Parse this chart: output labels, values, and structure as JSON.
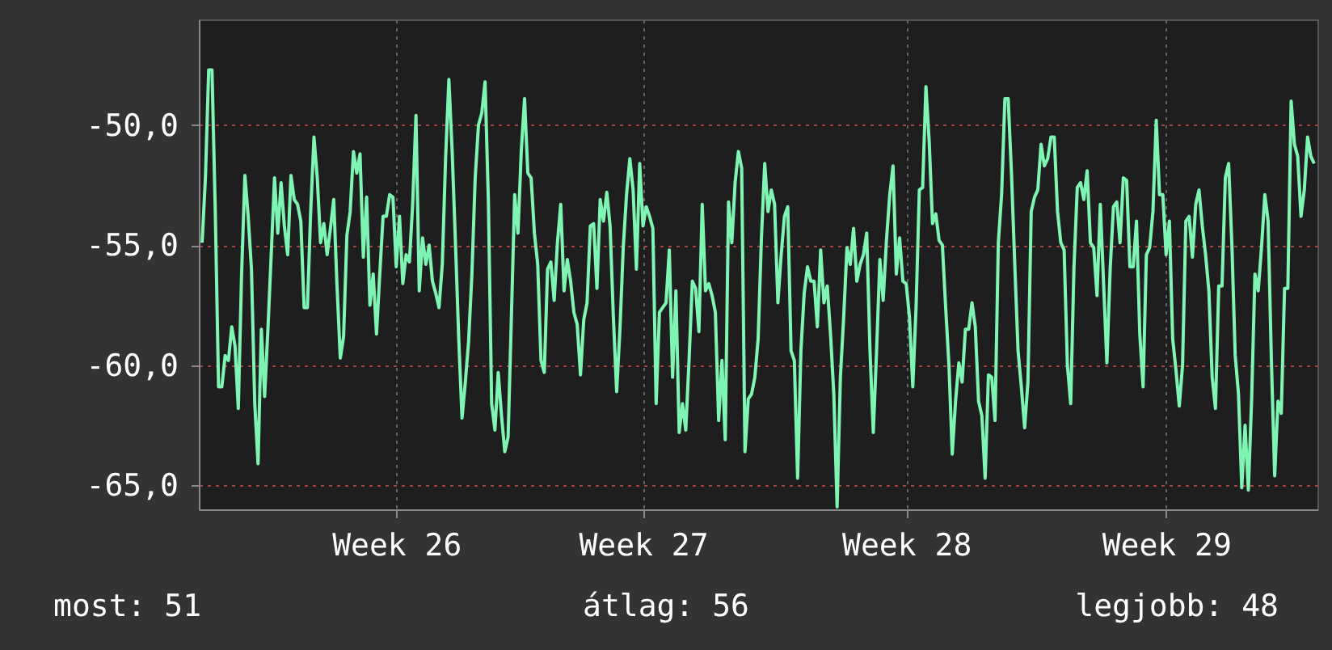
{
  "chart_data": {
    "type": "line",
    "categories": [
      null,
      null,
      null,
      null,
      null,
      null,
      null,
      null,
      null,
      null,
      null,
      null,
      null,
      null,
      null,
      null,
      null,
      null,
      null,
      null,
      null,
      null,
      null,
      null,
      null,
      null,
      null,
      null,
      null,
      null,
      null,
      null,
      null,
      null,
      null,
      null,
      null,
      null,
      null,
      null,
      null,
      null,
      null,
      null,
      null,
      null,
      null,
      null,
      null,
      null,
      null,
      null,
      null,
      null,
      null,
      null,
      null,
      null,
      null,
      "Week 26",
      null,
      null,
      null,
      null,
      null,
      null,
      null,
      null,
      null,
      null,
      null,
      null,
      null,
      null,
      null,
      null,
      null,
      null,
      null,
      null,
      null,
      null,
      null,
      null,
      null,
      null,
      null,
      null,
      null,
      null,
      null,
      null,
      null,
      null,
      null,
      null,
      null,
      null,
      null,
      null,
      null,
      null,
      null,
      null,
      null,
      null,
      null,
      null,
      null,
      null,
      null,
      null,
      null,
      null,
      null,
      null,
      null,
      null,
      null,
      null,
      null,
      null,
      null,
      null,
      null,
      null,
      null,
      null,
      null,
      null,
      null,
      null,
      null,
      null,
      "Week 27",
      null,
      null,
      null,
      null,
      null,
      null,
      null,
      null,
      null,
      null,
      null,
      null,
      null,
      null,
      null,
      null,
      null,
      null,
      null,
      null,
      null,
      null,
      null,
      null,
      null,
      null,
      null,
      null,
      null,
      null,
      null,
      null,
      null,
      null,
      null,
      null,
      null,
      null,
      null,
      null,
      null,
      null,
      null,
      null,
      null,
      null,
      null,
      null,
      null,
      null,
      null,
      null,
      null,
      null,
      null,
      null,
      null,
      null,
      null,
      null,
      null,
      null,
      null,
      null,
      null,
      null,
      null,
      null,
      null,
      null,
      null,
      null,
      null,
      null,
      null,
      null,
      null,
      null,
      null,
      "Week 28",
      null,
      null,
      null,
      null,
      null,
      null,
      null,
      null,
      null,
      null,
      null,
      null,
      null,
      null,
      null,
      null,
      null,
      null,
      null,
      null,
      null,
      null,
      null,
      null,
      null,
      null,
      null,
      null,
      null,
      null,
      null,
      null,
      null,
      null,
      null,
      null,
      null,
      null,
      null,
      null,
      null,
      null,
      null,
      null,
      null,
      null,
      null,
      null,
      null,
      null,
      null,
      null,
      null,
      null,
      null,
      null,
      null,
      null,
      null,
      null,
      null,
      null,
      null,
      null,
      null,
      null,
      null,
      null,
      null,
      null,
      null,
      null,
      null,
      null,
      null,
      null,
      null,
      null,
      "Week 29",
      null,
      null,
      null,
      null,
      null,
      null,
      null,
      null,
      null,
      null,
      null,
      null,
      null,
      null,
      null,
      null,
      null,
      null,
      null,
      null,
      null,
      null,
      null,
      null,
      null,
      null,
      null,
      null,
      null,
      null,
      null,
      null,
      null,
      null,
      null,
      null,
      null,
      null,
      null,
      null,
      null,
      null,
      null,
      null,
      null
    ],
    "series": [
      {
        "color": "#7ff5b4",
        "values": [
          -54.9,
          -52.2,
          -47.7,
          -47.7,
          -53.6,
          -60.9,
          -60.9,
          -59.6,
          -59.8,
          -58.4,
          -59.2,
          -61.8,
          -56.2,
          -52.1,
          -53.8,
          -56.0,
          -61.6,
          -64.1,
          -58.5,
          -61.3,
          -58.5,
          -55.4,
          -52.2,
          -54.5,
          -52.4,
          -54.2,
          -55.4,
          -52.1,
          -53.1,
          -53.3,
          -54.0,
          -57.6,
          -57.6,
          -53.6,
          -50.5,
          -52.2,
          -54.9,
          -54.1,
          -55.4,
          -54.3,
          -53.1,
          -56.7,
          -59.7,
          -58.8,
          -54.6,
          -53.6,
          -51.1,
          -52.0,
          -51.2,
          -55.5,
          -53.0,
          -57.5,
          -56.2,
          -58.7,
          -56.2,
          -53.8,
          -53.8,
          -52.9,
          -53.0,
          -55.9,
          -53.8,
          -56.6,
          -55.4,
          -55.7,
          -53.3,
          -49.6,
          -56.9,
          -54.7,
          -55.8,
          -55.0,
          -56.5,
          -57.0,
          -57.6,
          -55.8,
          -51.4,
          -48.1,
          -51.1,
          -54.9,
          -58.9,
          -62.2,
          -60.7,
          -59.0,
          -56.2,
          -52.2,
          -50.0,
          -49.5,
          -48.2,
          -53.1,
          -61.6,
          -62.7,
          -60.3,
          -62.1,
          -63.6,
          -63.0,
          -58.0,
          -52.9,
          -54.5,
          -51.1,
          -48.9,
          -52.0,
          -52.2,
          -54.5,
          -55.8,
          -59.8,
          -60.3,
          -56.0,
          -55.7,
          -57.3,
          -54.9,
          -53.3,
          -56.9,
          -55.6,
          -56.5,
          -57.8,
          -58.3,
          -60.4,
          -58.1,
          -57.4,
          -54.2,
          -54.1,
          -56.8,
          -53.1,
          -54.0,
          -52.8,
          -54.2,
          -58.0,
          -61.1,
          -58.5,
          -55.1,
          -52.9,
          -51.4,
          -52.7,
          -56.0,
          -51.6,
          -54.2,
          -53.4,
          -53.8,
          -54.3,
          -61.6,
          -57.8,
          -57.6,
          -57.4,
          -55.2,
          -60.5,
          -56.9,
          -62.8,
          -61.6,
          -62.7,
          -59.8,
          -56.5,
          -56.8,
          -58.6,
          -53.3,
          -56.9,
          -56.6,
          -57.1,
          -57.8,
          -62.3,
          -59.8,
          -63.1,
          -53.2,
          -54.9,
          -52.4,
          -51.1,
          -51.8,
          -63.6,
          -61.4,
          -61.2,
          -60.5,
          -58.9,
          -54.7,
          -51.6,
          -53.6,
          -52.7,
          -53.3,
          -57.4,
          -55.4,
          -53.8,
          -53.4,
          -59.4,
          -59.8,
          -64.7,
          -59.4,
          -57.0,
          -55.9,
          -56.5,
          -56.5,
          -58.4,
          -55.2,
          -57.4,
          -56.7,
          -58.7,
          -61.2,
          -65.9,
          -60.5,
          -58.0,
          -55.1,
          -55.8,
          -54.3,
          -56.5,
          -55.8,
          -55.4,
          -54.5,
          -59.4,
          -62.8,
          -59.4,
          -55.6,
          -57.3,
          -54.8,
          -52.9,
          -51.7,
          -56.2,
          -54.7,
          -56.5,
          -56.6,
          -58.0,
          -60.9,
          -57.6,
          -52.7,
          -52.6,
          -48.4,
          -50.7,
          -54.1,
          -53.7,
          -54.8,
          -55.0,
          -57.6,
          -60.0,
          -63.7,
          -61.5,
          -59.9,
          -60.7,
          -58.5,
          -58.5,
          -57.4,
          -58.4,
          -61.5,
          -62.1,
          -64.7,
          -60.4,
          -60.5,
          -62.3,
          -54.9,
          -52.9,
          -48.9,
          -48.9,
          -52.0,
          -55.8,
          -59.4,
          -60.9,
          -62.6,
          -60.7,
          -53.6,
          -53.0,
          -52.7,
          -50.8,
          -51.7,
          -51.4,
          -50.5,
          -50.5,
          -53.6,
          -54.9,
          -55.2,
          -60.0,
          -61.6,
          -55.9,
          -52.6,
          -52.4,
          -53.1,
          -51.9,
          -54.9,
          -55.1,
          -57.1,
          -53.3,
          -56.6,
          -59.9,
          -56.0,
          -53.4,
          -53.2,
          -54.9,
          -52.2,
          -52.3,
          -55.9,
          -55.9,
          -54.0,
          -58.7,
          -60.9,
          -55.4,
          -55.1,
          -53.6,
          -49.8,
          -52.9,
          -52.9,
          -55.4,
          -54.0,
          -58.9,
          -60.2,
          -61.7,
          -60.0,
          -54.0,
          -53.8,
          -55.5,
          -53.3,
          -52.7,
          -54.2,
          -55.4,
          -56.9,
          -60.5,
          -61.8,
          -56.7,
          -56.7,
          -52.2,
          -51.6,
          -55.0,
          -59.6,
          -61.2,
          -65.1,
          -62.5,
          -65.2,
          -61.4,
          -56.2,
          -56.9,
          -55.1,
          -52.9,
          -54.0,
          -59.8,
          -64.6,
          -61.5,
          -62.0,
          -56.8,
          -56.8,
          -49.0,
          -50.8,
          -51.3,
          -53.8,
          -52.7,
          -50.5,
          -51.3,
          -51.6
        ]
      }
    ],
    "ylim": [
      -66,
      -45.6
    ],
    "yticks": [
      {
        "value": -65,
        "label": "-65,0"
      },
      {
        "value": -60,
        "label": "-60,0"
      },
      {
        "value": -55,
        "label": "-55,0"
      },
      {
        "value": -50,
        "label": "-50,0"
      }
    ],
    "grid": true,
    "line_style": "solid",
    "annotations": [
      "most: 51",
      "átlag: 56",
      "legjobb: 48"
    ]
  }
}
